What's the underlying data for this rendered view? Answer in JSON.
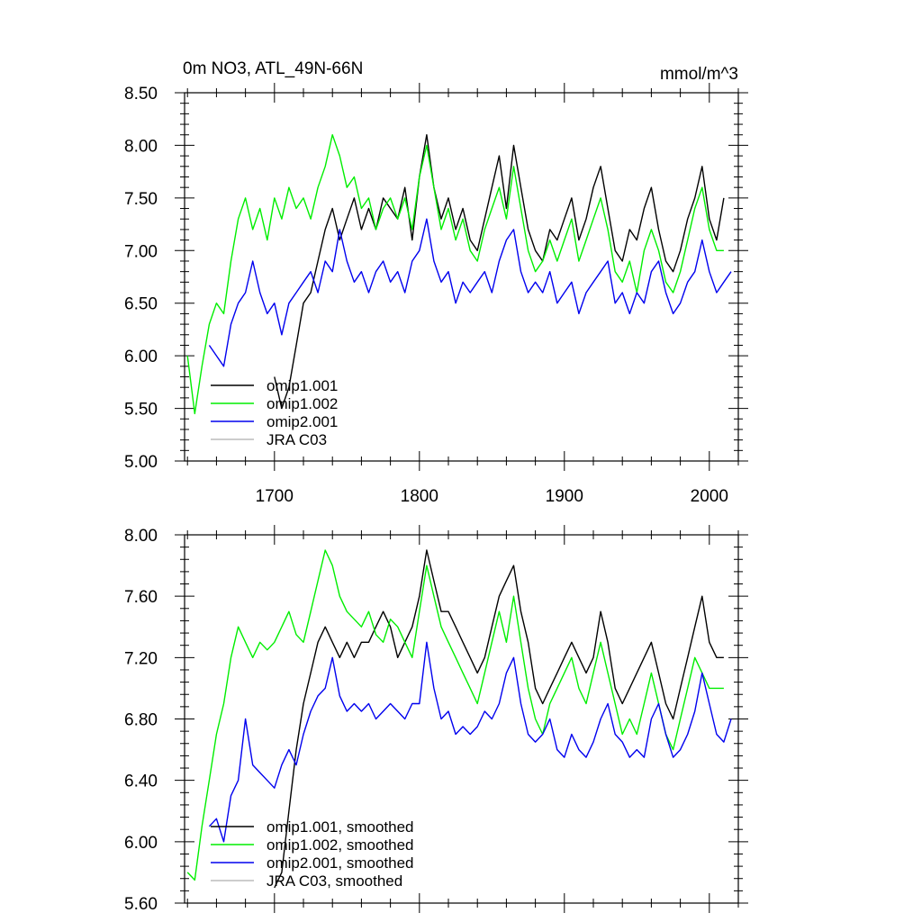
{
  "header": {
    "title": "0m NO3, ATL_49N-66N",
    "units": "mmol/m^3"
  },
  "colors": {
    "omip1_001": "#000000",
    "omip1_002": "#00ee00",
    "omip2_001": "#0000ee",
    "jra_c03": "#bbbbbb"
  },
  "chart_data": [
    {
      "type": "line",
      "title": "0m NO3, ATL_49N-66N",
      "units": "mmol/m^3",
      "xlim": [
        1638,
        2020
      ],
      "ylim": [
        5.0,
        8.5
      ],
      "x_ticks": [
        1700,
        1800,
        1900,
        2000
      ],
      "x_tick_labels": [
        "1700",
        "1800",
        "1900",
        "2000"
      ],
      "y_ticks": [
        5.0,
        5.5,
        6.0,
        6.5,
        7.0,
        7.5,
        8.0,
        8.5
      ],
      "y_tick_labels": [
        "5.00",
        "5.50",
        "6.00",
        "6.50",
        "7.00",
        "7.50",
        "8.00",
        "8.50"
      ],
      "legend_position": "bottom-left",
      "series": [
        {
          "name": "omip1.001",
          "color": "#000000",
          "x": [
            1700,
            1705,
            1710,
            1715,
            1720,
            1725,
            1730,
            1735,
            1740,
            1745,
            1750,
            1755,
            1760,
            1765,
            1770,
            1775,
            1780,
            1785,
            1790,
            1795,
            1800,
            1805,
            1810,
            1815,
            1820,
            1825,
            1830,
            1835,
            1840,
            1845,
            1850,
            1855,
            1860,
            1865,
            1870,
            1875,
            1880,
            1885,
            1890,
            1895,
            1900,
            1905,
            1910,
            1915,
            1920,
            1925,
            1930,
            1935,
            1940,
            1945,
            1950,
            1955,
            1960,
            1965,
            1970,
            1975,
            1980,
            1985,
            1990,
            1995,
            2000,
            2005,
            2010
          ],
          "y": [
            5.8,
            5.5,
            5.7,
            6.1,
            6.5,
            6.6,
            6.9,
            7.2,
            7.4,
            7.1,
            7.3,
            7.5,
            7.2,
            7.4,
            7.2,
            7.5,
            7.4,
            7.3,
            7.6,
            7.1,
            7.7,
            8.1,
            7.6,
            7.3,
            7.5,
            7.2,
            7.4,
            7.1,
            7.0,
            7.3,
            7.6,
            7.9,
            7.4,
            8.0,
            7.6,
            7.2,
            7.0,
            6.9,
            7.2,
            7.1,
            7.3,
            7.5,
            7.1,
            7.3,
            7.6,
            7.8,
            7.4,
            7.0,
            6.9,
            7.2,
            7.1,
            7.4,
            7.6,
            7.2,
            6.9,
            6.8,
            7.0,
            7.3,
            7.5,
            7.8,
            7.3,
            7.1,
            7.5
          ]
        },
        {
          "name": "omip1.002",
          "color": "#00ee00",
          "x": [
            1640,
            1645,
            1650,
            1655,
            1660,
            1665,
            1670,
            1675,
            1680,
            1685,
            1690,
            1695,
            1700,
            1705,
            1710,
            1715,
            1720,
            1725,
            1730,
            1735,
            1740,
            1745,
            1750,
            1755,
            1760,
            1765,
            1770,
            1775,
            1780,
            1785,
            1790,
            1795,
            1800,
            1805,
            1810,
            1815,
            1820,
            1825,
            1830,
            1835,
            1840,
            1845,
            1850,
            1855,
            1860,
            1865,
            1870,
            1875,
            1880,
            1885,
            1890,
            1895,
            1900,
            1905,
            1910,
            1915,
            1920,
            1925,
            1930,
            1935,
            1940,
            1945,
            1950,
            1955,
            1960,
            1965,
            1970,
            1975,
            1980,
            1985,
            1990,
            1995,
            2000,
            2005,
            2010
          ],
          "y": [
            6.0,
            5.45,
            5.9,
            6.3,
            6.5,
            6.4,
            6.9,
            7.3,
            7.5,
            7.2,
            7.4,
            7.1,
            7.5,
            7.3,
            7.6,
            7.4,
            7.5,
            7.3,
            7.6,
            7.8,
            8.1,
            7.9,
            7.6,
            7.7,
            7.4,
            7.5,
            7.2,
            7.4,
            7.5,
            7.3,
            7.5,
            7.2,
            7.7,
            8.0,
            7.6,
            7.2,
            7.4,
            7.1,
            7.3,
            7.0,
            6.9,
            7.2,
            7.4,
            7.6,
            7.3,
            7.8,
            7.4,
            7.0,
            6.8,
            6.9,
            7.1,
            6.9,
            7.1,
            7.3,
            6.9,
            7.1,
            7.3,
            7.5,
            7.2,
            6.8,
            6.7,
            6.9,
            6.6,
            7.0,
            7.2,
            7.0,
            6.7,
            6.6,
            6.8,
            7.1,
            7.4,
            7.6,
            7.2,
            7.0,
            7.0
          ]
        },
        {
          "name": "omip2.001",
          "color": "#0000ee",
          "x": [
            1655,
            1660,
            1665,
            1670,
            1675,
            1680,
            1685,
            1690,
            1695,
            1700,
            1705,
            1710,
            1715,
            1720,
            1725,
            1730,
            1735,
            1740,
            1745,
            1750,
            1755,
            1760,
            1765,
            1770,
            1775,
            1780,
            1785,
            1790,
            1795,
            1800,
            1805,
            1810,
            1815,
            1820,
            1825,
            1830,
            1835,
            1840,
            1845,
            1850,
            1855,
            1860,
            1865,
            1870,
            1875,
            1880,
            1885,
            1890,
            1895,
            1900,
            1905,
            1910,
            1915,
            1920,
            1925,
            1930,
            1935,
            1940,
            1945,
            1950,
            1955,
            1960,
            1965,
            1970,
            1975,
            1980,
            1985,
            1990,
            1995,
            2000,
            2005,
            2010,
            2015
          ],
          "y": [
            6.1,
            6.0,
            5.9,
            6.3,
            6.5,
            6.6,
            6.9,
            6.6,
            6.4,
            6.5,
            6.2,
            6.5,
            6.6,
            6.7,
            6.8,
            6.6,
            6.9,
            6.8,
            7.2,
            6.9,
            6.7,
            6.8,
            6.6,
            6.8,
            6.9,
            6.7,
            6.8,
            6.6,
            6.9,
            7.0,
            7.3,
            6.9,
            6.7,
            6.8,
            6.5,
            6.7,
            6.6,
            6.7,
            6.8,
            6.6,
            6.9,
            7.1,
            7.2,
            6.8,
            6.6,
            6.7,
            6.6,
            6.8,
            6.5,
            6.6,
            6.7,
            6.4,
            6.6,
            6.7,
            6.8,
            6.9,
            6.5,
            6.6,
            6.4,
            6.6,
            6.5,
            6.8,
            6.9,
            6.6,
            6.4,
            6.5,
            6.7,
            6.8,
            7.1,
            6.8,
            6.6,
            6.7,
            6.8
          ]
        },
        {
          "name": "JRA C03",
          "color": "#bbbbbb",
          "x": [],
          "y": []
        }
      ]
    },
    {
      "type": "line",
      "xlim": [
        1638,
        2020
      ],
      "ylim": [
        5.6,
        8.0
      ],
      "x_ticks": [
        1700,
        1800,
        1900,
        2000
      ],
      "y_ticks": [
        5.6,
        6.0,
        6.4,
        6.8,
        7.2,
        7.6,
        8.0
      ],
      "y_tick_labels": [
        "5.60",
        "6.00",
        "6.40",
        "6.80",
        "7.20",
        "7.60",
        "8.00"
      ],
      "legend_position": "bottom-left",
      "series": [
        {
          "name": "omip1.001, smoothed",
          "color": "#000000",
          "x": [
            1700,
            1705,
            1710,
            1715,
            1720,
            1725,
            1730,
            1735,
            1740,
            1745,
            1750,
            1755,
            1760,
            1765,
            1770,
            1775,
            1780,
            1785,
            1790,
            1795,
            1800,
            1805,
            1810,
            1815,
            1820,
            1825,
            1830,
            1835,
            1840,
            1845,
            1850,
            1855,
            1860,
            1865,
            1870,
            1875,
            1880,
            1885,
            1890,
            1895,
            1900,
            1905,
            1910,
            1915,
            1920,
            1925,
            1930,
            1935,
            1940,
            1945,
            1950,
            1955,
            1960,
            1965,
            1970,
            1975,
            1980,
            1985,
            1990,
            1995,
            2000,
            2005,
            2010
          ],
          "y": [
            5.7,
            5.8,
            6.2,
            6.6,
            6.9,
            7.1,
            7.3,
            7.4,
            7.3,
            7.2,
            7.3,
            7.2,
            7.3,
            7.3,
            7.4,
            7.5,
            7.4,
            7.2,
            7.3,
            7.4,
            7.6,
            7.9,
            7.7,
            7.5,
            7.5,
            7.4,
            7.3,
            7.2,
            7.1,
            7.2,
            7.4,
            7.6,
            7.7,
            7.8,
            7.5,
            7.3,
            7.0,
            6.9,
            7.0,
            7.1,
            7.2,
            7.3,
            7.2,
            7.1,
            7.2,
            7.5,
            7.3,
            7.0,
            6.9,
            7.0,
            7.1,
            7.2,
            7.3,
            7.1,
            6.9,
            6.8,
            7.0,
            7.2,
            7.4,
            7.6,
            7.3,
            7.2,
            7.2
          ]
        },
        {
          "name": "omip1.002, smoothed",
          "color": "#00ee00",
          "x": [
            1640,
            1645,
            1650,
            1655,
            1660,
            1665,
            1670,
            1675,
            1680,
            1685,
            1690,
            1695,
            1700,
            1705,
            1710,
            1715,
            1720,
            1725,
            1730,
            1735,
            1740,
            1745,
            1750,
            1755,
            1760,
            1765,
            1770,
            1775,
            1780,
            1785,
            1790,
            1795,
            1800,
            1805,
            1810,
            1815,
            1820,
            1825,
            1830,
            1835,
            1840,
            1845,
            1850,
            1855,
            1860,
            1865,
            1870,
            1875,
            1880,
            1885,
            1890,
            1895,
            1900,
            1905,
            1910,
            1915,
            1920,
            1925,
            1930,
            1935,
            1940,
            1945,
            1950,
            1955,
            1960,
            1965,
            1970,
            1975,
            1980,
            1985,
            1990,
            1995,
            2000,
            2005,
            2010
          ],
          "y": [
            5.8,
            5.75,
            6.1,
            6.4,
            6.7,
            6.9,
            7.2,
            7.4,
            7.3,
            7.2,
            7.3,
            7.25,
            7.3,
            7.4,
            7.5,
            7.35,
            7.3,
            7.5,
            7.7,
            7.9,
            7.8,
            7.6,
            7.5,
            7.45,
            7.4,
            7.5,
            7.35,
            7.3,
            7.45,
            7.4,
            7.3,
            7.2,
            7.5,
            7.8,
            7.6,
            7.4,
            7.3,
            7.2,
            7.1,
            7.0,
            6.9,
            7.1,
            7.3,
            7.5,
            7.3,
            7.6,
            7.3,
            7.0,
            6.8,
            6.7,
            6.9,
            7.0,
            7.1,
            7.2,
            7.0,
            6.9,
            7.1,
            7.3,
            7.1,
            6.9,
            6.7,
            6.8,
            6.7,
            6.9,
            7.1,
            6.9,
            6.7,
            6.6,
            6.8,
            7.0,
            7.2,
            7.1,
            7.0,
            7.0,
            7.0
          ]
        },
        {
          "name": "omip2.001, smoothed",
          "color": "#0000ee",
          "x": [
            1655,
            1660,
            1665,
            1670,
            1675,
            1680,
            1685,
            1690,
            1695,
            1700,
            1705,
            1710,
            1715,
            1720,
            1725,
            1730,
            1735,
            1740,
            1745,
            1750,
            1755,
            1760,
            1765,
            1770,
            1775,
            1780,
            1785,
            1790,
            1795,
            1800,
            1805,
            1810,
            1815,
            1820,
            1825,
            1830,
            1835,
            1840,
            1845,
            1850,
            1855,
            1860,
            1865,
            1870,
            1875,
            1880,
            1885,
            1890,
            1895,
            1900,
            1905,
            1910,
            1915,
            1920,
            1925,
            1930,
            1935,
            1940,
            1945,
            1950,
            1955,
            1960,
            1965,
            1970,
            1975,
            1980,
            1985,
            1990,
            1995,
            2000,
            2005,
            2010,
            2015
          ],
          "y": [
            6.1,
            6.15,
            6.0,
            6.3,
            6.4,
            6.8,
            6.5,
            6.45,
            6.4,
            6.35,
            6.5,
            6.6,
            6.5,
            6.7,
            6.85,
            6.95,
            7.0,
            7.2,
            6.95,
            6.85,
            6.9,
            6.85,
            6.9,
            6.8,
            6.85,
            6.9,
            6.85,
            6.8,
            6.9,
            6.9,
            7.3,
            7.0,
            6.8,
            6.85,
            6.7,
            6.75,
            6.7,
            6.75,
            6.85,
            6.8,
            6.9,
            7.1,
            7.2,
            6.9,
            6.7,
            6.65,
            6.7,
            6.8,
            6.6,
            6.55,
            6.7,
            6.6,
            6.55,
            6.65,
            6.8,
            6.9,
            6.7,
            6.65,
            6.55,
            6.6,
            6.55,
            6.8,
            6.9,
            6.7,
            6.55,
            6.6,
            6.7,
            6.85,
            7.1,
            6.9,
            6.7,
            6.65,
            6.8
          ]
        },
        {
          "name": "JRA C03, smoothed",
          "color": "#bbbbbb",
          "x": [],
          "y": []
        }
      ]
    }
  ]
}
